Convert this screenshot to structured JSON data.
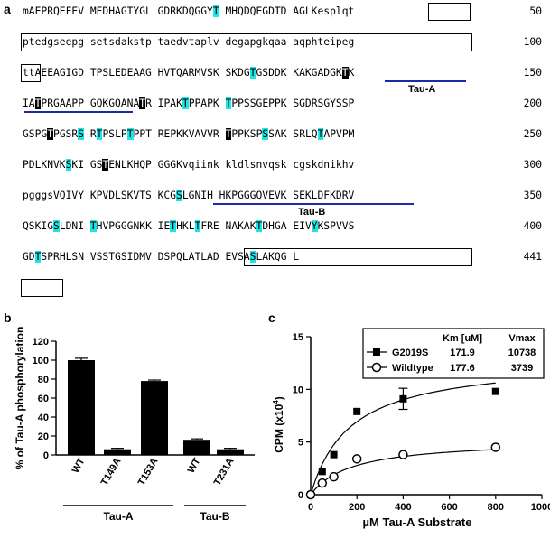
{
  "panel_a": {
    "letter": "a",
    "lines": [
      {
        "num": "50",
        "segs": [
          {
            "t": "mAEPRQEFEV MEDHAGTYGL GDRKDQGGY"
          },
          {
            "t": "T",
            "s": "hl"
          },
          {
            "t": " MHQDQEGDTD AGLK"
          },
          {
            "t": "esplqt"
          }
        ]
      },
      {
        "num": "100",
        "segs": [
          {
            "t": "ptedgseepg setsdakstp taedvtaplv degapgkqaa aqphteipeg"
          }
        ]
      },
      {
        "num": "150",
        "segs": [
          {
            "t": "tt"
          },
          {
            "t": "AEEAGIGD TPSLEDEAAG HVTQARMVSK SKDG"
          },
          {
            "t": "T",
            "s": "hl"
          },
          {
            "t": "GSDDK KAKGADGK"
          },
          {
            "t": "T",
            "s": "bk"
          },
          {
            "t": "K"
          }
        ]
      },
      {
        "num": "200",
        "segs": [
          {
            "t": "IA"
          },
          {
            "t": "T",
            "s": "bk"
          },
          {
            "t": "PRGAAPP GQKGQANA"
          },
          {
            "t": "T",
            "s": "bk"
          },
          {
            "t": "R IPAK"
          },
          {
            "t": "T",
            "s": "hl"
          },
          {
            "t": "PPAPK "
          },
          {
            "t": "T",
            "s": "hl"
          },
          {
            "t": "PPSSGEPPK SGDRSGYSSP"
          }
        ]
      },
      {
        "num": "250",
        "segs": [
          {
            "t": "GSPG"
          },
          {
            "t": "T",
            "s": "bk"
          },
          {
            "t": "PGSR"
          },
          {
            "t": "S",
            "s": "hl"
          },
          {
            "t": " R"
          },
          {
            "t": "T",
            "s": "hl"
          },
          {
            "t": "PSLP"
          },
          {
            "t": "T",
            "s": "hl"
          },
          {
            "t": "PPT REPKKVAVVR "
          },
          {
            "t": "T",
            "s": "bk"
          },
          {
            "t": "PPKSP"
          },
          {
            "t": "S",
            "s": "hl"
          },
          {
            "t": "SAK SRLQ"
          },
          {
            "t": "T",
            "s": "hl"
          },
          {
            "t": "APVPM"
          }
        ]
      },
      {
        "num": "300",
        "segs": [
          {
            "t": "PDLKNVK"
          },
          {
            "t": "S",
            "s": "hl"
          },
          {
            "t": "KI GS"
          },
          {
            "t": "T",
            "s": "bk"
          },
          {
            "t": "ENLKHQP GGGKvqiink kldlsnvqsk cgskdnikhv"
          }
        ]
      },
      {
        "num": "350",
        "segs": [
          {
            "t": "pgggsVQIVY KPVDLSKVTS KCG"
          },
          {
            "t": "S",
            "s": "hl"
          },
          {
            "t": "LGNIH HKPGGGQVEVK SEKLDFKDRV"
          }
        ]
      },
      {
        "num": "400",
        "segs": [
          {
            "t": "QSKIG"
          },
          {
            "t": "S",
            "s": "hl"
          },
          {
            "t": "LDNI "
          },
          {
            "t": "T",
            "s": "hl"
          },
          {
            "t": "HVPGGGNKK IE"
          },
          {
            "t": "T",
            "s": "hl"
          },
          {
            "t": "HKL"
          },
          {
            "t": "T",
            "s": "hl"
          },
          {
            "t": "FRE NAKAK"
          },
          {
            "t": "T",
            "s": "hl"
          },
          {
            "t": "DHGA EIV"
          },
          {
            "t": "Y",
            "s": "hl"
          },
          {
            "t": "KSPVVS"
          }
        ]
      },
      {
        "num": "441",
        "segs": [
          {
            "t": "GD"
          },
          {
            "t": "T",
            "s": "hl"
          },
          {
            "t": "SPRHLSN VSSTGSIDMV DSPQLATLAD EVSA"
          },
          {
            "t": "S",
            "s": "hl"
          },
          {
            "t": "LAKQG L"
          }
        ]
      }
    ],
    "tau_a_label": "Tau-A",
    "tau_b_label": "Tau-B",
    "highlight_color": "#1ee5e5",
    "underline_color": "#1b2aa8"
  },
  "panel_b": {
    "letter": "b",
    "chart_data": {
      "type": "bar",
      "categories": [
        "WT",
        "T149A",
        "T153A",
        "WT",
        "T231A"
      ],
      "values": [
        100,
        6,
        78,
        16,
        6
      ],
      "errors": [
        2,
        1,
        1,
        1,
        1
      ],
      "groups": [
        {
          "name": "Tau-A",
          "members": [
            0,
            1,
            2
          ]
        },
        {
          "name": "Tau-B",
          "members": [
            3,
            4
          ]
        }
      ],
      "ylabel": "% of Tau-A phosphorylation",
      "ylim": [
        0,
        120
      ],
      "yticks": [
        0,
        20,
        40,
        60,
        80,
        100,
        120
      ],
      "bar_color": "#000000"
    }
  },
  "panel_c": {
    "letter": "c",
    "chart_data": {
      "type": "scatter",
      "xlabel": "µM Tau-A Substrate",
      "ylabel": "CPM (x10",
      "ylabel_sup": "4",
      "ylabel_end": ")",
      "xlim": [
        0,
        1000
      ],
      "ylim": [
        0,
        15
      ],
      "xticks": [
        0,
        200,
        400,
        600,
        800,
        1000
      ],
      "yticks": [
        0,
        5,
        10,
        15
      ],
      "legend_header": {
        "km": "Km [uM]",
        "vmax": "Vmax"
      },
      "series": [
        {
          "name": "G2019S",
          "marker": "filled-square",
          "km": 171.9,
          "vmax": 10738,
          "km_label": "171.9",
          "vmax_label": "10738",
          "x": [
            0,
            50,
            100,
            200,
            400,
            800
          ],
          "y": [
            0,
            2.2,
            3.8,
            7.9,
            9.1,
            9.8
          ],
          "yerr": [
            0,
            0,
            0,
            0,
            1.0,
            0
          ]
        },
        {
          "name": "Wildtype",
          "marker": "open-circle",
          "km": 177.6,
          "vmax": 3739,
          "km_label": "177.6",
          "vmax_label": "3739",
          "x": [
            0,
            50,
            100,
            200,
            400,
            800
          ],
          "y": [
            0,
            1.1,
            1.7,
            3.4,
            3.8,
            4.5
          ],
          "yerr": [
            0,
            0,
            0,
            0,
            0,
            0
          ]
        }
      ]
    }
  }
}
